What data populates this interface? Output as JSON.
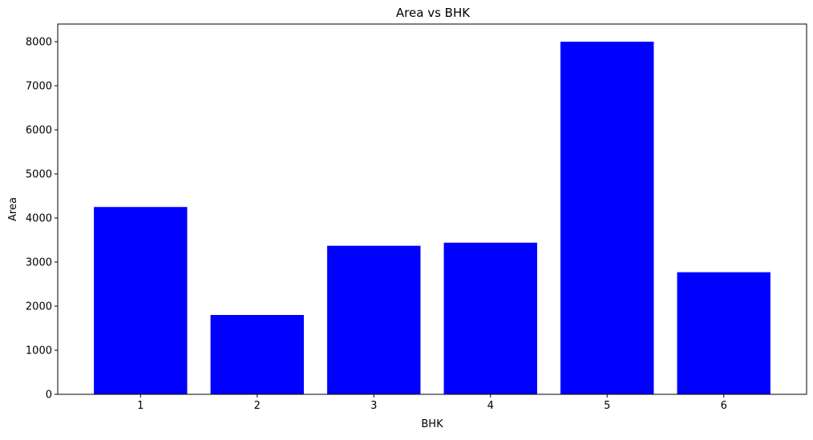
{
  "chart_data": {
    "type": "bar",
    "title": "Area vs BHK",
    "xlabel": "BHK",
    "ylabel": "Area",
    "categories": [
      "1",
      "2",
      "3",
      "4",
      "5",
      "6"
    ],
    "values": [
      4250,
      1800,
      3370,
      3440,
      8000,
      2770
    ],
    "yticks": [
      0,
      1000,
      2000,
      3000,
      4000,
      5000,
      6000,
      7000,
      8000
    ],
    "ylim": [
      0,
      8400
    ],
    "bar_color": "#0000ff",
    "grid": false,
    "legend": "none"
  }
}
